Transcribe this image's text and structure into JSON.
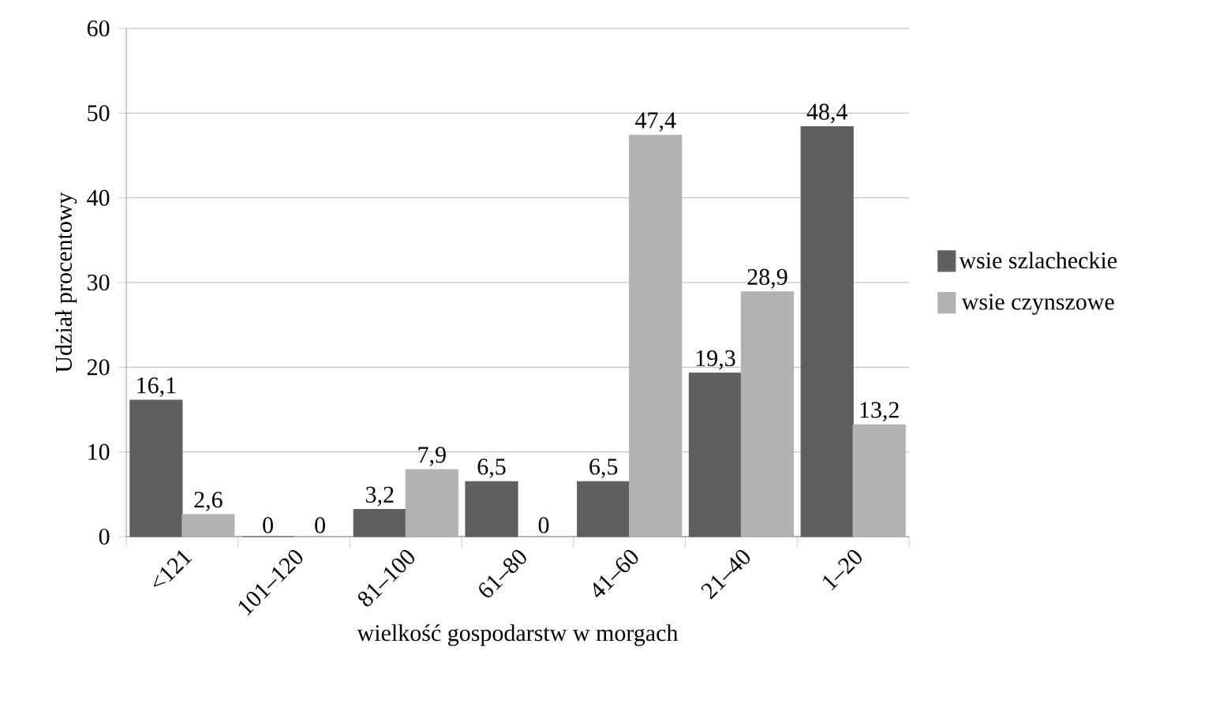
{
  "chart_data": {
    "type": "bar",
    "xlabel": "wielkość gospodarstw w morgach",
    "ylabel": "Udział procentowy",
    "categories": [
      "<121",
      "101–120",
      "81–100",
      "61–80",
      "41–60",
      "21–40",
      "1–20"
    ],
    "series": [
      {
        "name": "wsie szlacheckie",
        "color": "#5f5f5f",
        "values": [
          16.1,
          0,
          3.2,
          6.5,
          6.5,
          19.3,
          48.4
        ],
        "value_labels": [
          "16,1",
          "0",
          "3,2",
          "6,5",
          "6,5",
          "19,3",
          "48,4"
        ]
      },
      {
        "name": "wsie czynszowe",
        "color": "#b2b2b2",
        "values": [
          2.6,
          0,
          7.9,
          0,
          47.4,
          28.9,
          13.2
        ],
        "value_labels": [
          "2,6",
          "0",
          "7,9",
          "0",
          "47,4",
          "28,9",
          "13,2"
        ]
      }
    ],
    "ylim": [
      0,
      60
    ],
    "yticks": [
      0,
      10,
      20,
      30,
      40,
      50,
      60
    ],
    "grid": "y",
    "legend": "right"
  }
}
